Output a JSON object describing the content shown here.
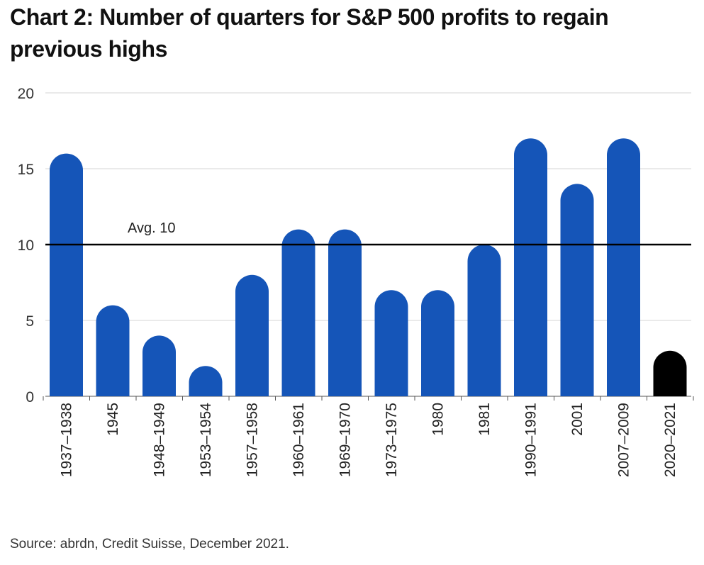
{
  "chart_data": {
    "type": "bar",
    "title": "Chart 2: Number of quarters for S&P 500 profits to regain previous highs",
    "categories": [
      "1937–1938",
      "1945",
      "1948–1949",
      "1953–1954",
      "1957–1958",
      "1960–1961",
      "1969–1970",
      "1973–1975",
      "1980",
      "1981",
      "1990–1991",
      "2001",
      "2007–2009",
      "2020–2021"
    ],
    "values": [
      16,
      6,
      4,
      2,
      8,
      11,
      11,
      7,
      7,
      10,
      17,
      14,
      17,
      3
    ],
    "bar_colors": [
      "#1555b8",
      "#1555b8",
      "#1555b8",
      "#1555b8",
      "#1555b8",
      "#1555b8",
      "#1555b8",
      "#1555b8",
      "#1555b8",
      "#1555b8",
      "#1555b8",
      "#1555b8",
      "#1555b8",
      "#000000"
    ],
    "ylim": [
      0,
      20
    ],
    "yticks": [
      0,
      5,
      10,
      15,
      20
    ],
    "reference_line": {
      "value": 10,
      "label": "Avg. 10",
      "color": "#000000"
    },
    "grid": true,
    "xlabel": "",
    "ylabel": ""
  },
  "source": "Source: abrdn, Credit Suisse, December 2021."
}
